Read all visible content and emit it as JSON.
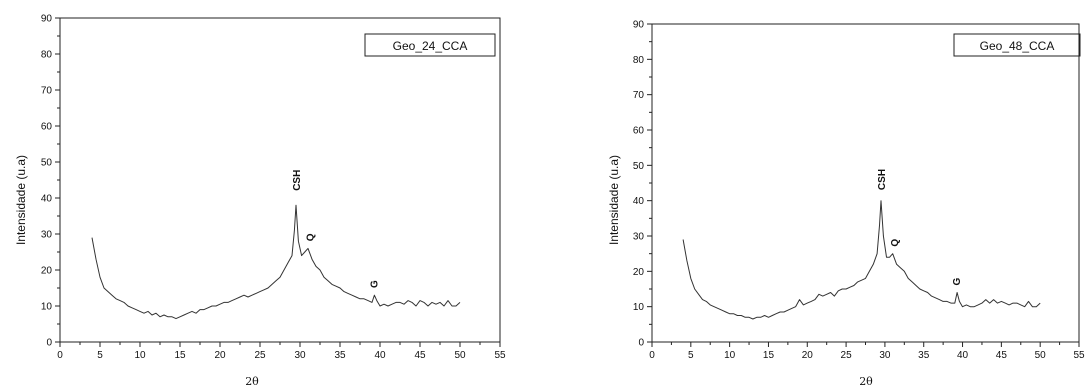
{
  "chart_data": [
    {
      "type": "line",
      "ylabel": "Intensidade (u.a)",
      "xlabel": "2θ",
      "xlim": [
        0,
        55
      ],
      "ylim": [
        0,
        90
      ],
      "xticks": [
        0,
        5,
        10,
        15,
        20,
        25,
        30,
        35,
        40,
        45,
        50,
        55
      ],
      "yticks": [
        0,
        10,
        20,
        30,
        40,
        50,
        60,
        70,
        80,
        90
      ],
      "legend_position": "top-right",
      "grid": false,
      "series": [
        {
          "name": "Geo_24_CCA",
          "color": "#333333",
          "x": [
            4,
            4.5,
            5,
            5.5,
            6,
            6.5,
            7,
            7.5,
            8,
            8.5,
            9,
            9.5,
            10,
            10.5,
            11,
            11.5,
            12,
            12.5,
            13,
            13.5,
            14,
            14.5,
            15,
            15.5,
            16,
            16.5,
            17,
            17.5,
            18,
            18.5,
            19,
            19.5,
            20,
            20.5,
            21,
            21.5,
            22,
            22.5,
            23,
            23.5,
            24,
            24.5,
            25,
            25.5,
            26,
            26.5,
            27,
            27.5,
            28,
            28.5,
            29,
            29.3,
            29.5,
            29.8,
            30.2,
            30.6,
            31,
            31.5,
            32,
            32.5,
            33,
            33.5,
            34,
            34.5,
            35,
            35.5,
            36,
            36.5,
            37,
            37.5,
            38,
            38.5,
            39,
            39.3,
            39.6,
            40,
            40.5,
            41,
            41.5,
            42,
            42.5,
            43,
            43.5,
            44,
            44.5,
            45,
            45.5,
            46,
            46.5,
            47,
            47.5,
            48,
            48.5,
            49,
            49.5,
            50
          ],
          "y": [
            29,
            23,
            18,
            15,
            14,
            13,
            12,
            11.5,
            11,
            10,
            9.5,
            9,
            8.5,
            8,
            8.5,
            7.5,
            8,
            7,
            7.5,
            7,
            7,
            6.5,
            7,
            7.5,
            8,
            8.5,
            8,
            9,
            9,
            9.5,
            10,
            10,
            10.5,
            11,
            11,
            11.5,
            12,
            12.5,
            13,
            12.5,
            13,
            13.5,
            14,
            14.5,
            15,
            16,
            17,
            18,
            20,
            22,
            24,
            31,
            38,
            28,
            24,
            25,
            26,
            23,
            21,
            20,
            18,
            17,
            16,
            15.5,
            15,
            14,
            13.5,
            13,
            12.5,
            12,
            12,
            11.5,
            11,
            13,
            11.5,
            10,
            10.5,
            10,
            10.5,
            11,
            11,
            10.5,
            11.5,
            11,
            10,
            11.5,
            11,
            10,
            11,
            10.5,
            11,
            10,
            11.5,
            10,
            10,
            11
          ]
        }
      ],
      "annotations": [
        {
          "text": "CSH",
          "x": 29.6,
          "y": 42
        },
        {
          "text": "Q",
          "x": 31.3,
          "y": 28
        },
        {
          "text": "G",
          "x": 39.3,
          "y": 15
        }
      ]
    },
    {
      "type": "line",
      "ylabel": "Intensidade (u.a)",
      "xlabel": "2θ",
      "xlim": [
        0,
        55
      ],
      "ylim": [
        0,
        90
      ],
      "xticks": [
        0,
        5,
        10,
        15,
        20,
        25,
        30,
        35,
        40,
        45,
        50,
        55
      ],
      "yticks": [
        0,
        10,
        20,
        30,
        40,
        50,
        60,
        70,
        80,
        90
      ],
      "legend_position": "top-right",
      "grid": false,
      "series": [
        {
          "name": "Geo_48_CCA",
          "color": "#333333",
          "x": [
            4,
            4.5,
            5,
            5.5,
            6,
            6.5,
            7,
            7.5,
            8,
            8.5,
            9,
            9.5,
            10,
            10.5,
            11,
            11.5,
            12,
            12.5,
            13,
            13.5,
            14,
            14.5,
            15,
            15.5,
            16,
            16.5,
            17,
            17.5,
            18,
            18.5,
            19,
            19.5,
            20,
            20.5,
            21,
            21.5,
            22,
            22.5,
            23,
            23.5,
            24,
            24.5,
            25,
            25.5,
            26,
            26.5,
            27,
            27.5,
            28,
            28.5,
            29,
            29.3,
            29.5,
            29.8,
            30.2,
            30.6,
            31,
            31.5,
            32,
            32.5,
            33,
            33.5,
            34,
            34.5,
            35,
            35.5,
            36,
            36.5,
            37,
            37.5,
            38,
            38.5,
            39,
            39.3,
            39.6,
            40,
            40.5,
            41,
            41.5,
            42,
            42.5,
            43,
            43.5,
            44,
            44.5,
            45,
            45.5,
            46,
            46.5,
            47,
            47.5,
            48,
            48.5,
            49,
            49.5,
            50
          ],
          "y": [
            29,
            23,
            18,
            15,
            13.5,
            12,
            11.5,
            10.5,
            10,
            9.5,
            9,
            8.5,
            8,
            8,
            7.5,
            7.5,
            7,
            7,
            6.5,
            7,
            7,
            7.5,
            7,
            7.5,
            8,
            8.5,
            8.5,
            9,
            9.5,
            10,
            12,
            10.5,
            11,
            11.5,
            12,
            13.5,
            13,
            13.5,
            14,
            13,
            14.5,
            15,
            15,
            15.5,
            16,
            17,
            17.5,
            18,
            20,
            22,
            25,
            33,
            40,
            30,
            24,
            24,
            25,
            22,
            21,
            20,
            18,
            17,
            16,
            15,
            14.5,
            14,
            13,
            12.5,
            12,
            11.5,
            11.5,
            11,
            11,
            14,
            11.5,
            10,
            10.5,
            10,
            10,
            10.5,
            11,
            12,
            11,
            12,
            11,
            11.5,
            11,
            10.5,
            11,
            11,
            10.5,
            10,
            11.5,
            10,
            10,
            11
          ]
        }
      ],
      "annotations": [
        {
          "text": "CSH",
          "x": 29.6,
          "y": 43
        },
        {
          "text": "Q",
          "x": 31.3,
          "y": 27
        },
        {
          "text": "G",
          "x": 39.3,
          "y": 16
        }
      ]
    }
  ]
}
